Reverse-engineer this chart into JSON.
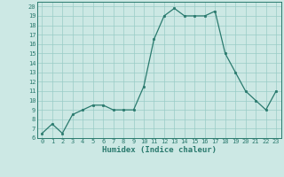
{
  "x": [
    0,
    1,
    2,
    3,
    4,
    5,
    6,
    7,
    8,
    9,
    10,
    11,
    12,
    13,
    14,
    15,
    16,
    17,
    18,
    19,
    20,
    21,
    22,
    23
  ],
  "y": [
    6.5,
    7.5,
    6.5,
    8.5,
    9.0,
    9.5,
    9.5,
    9.0,
    9.0,
    9.0,
    11.5,
    16.5,
    19.0,
    19.8,
    19.0,
    19.0,
    19.0,
    19.5,
    15.0,
    13.0,
    11.0,
    10.0,
    9.0,
    11.0
  ],
  "xlabel": "Humidex (Indice chaleur)",
  "ylim": [
    6,
    20.5
  ],
  "xlim": [
    -0.5,
    23.5
  ],
  "yticks": [
    6,
    7,
    8,
    9,
    10,
    11,
    12,
    13,
    14,
    15,
    16,
    17,
    18,
    19,
    20
  ],
  "xticks": [
    0,
    1,
    2,
    3,
    4,
    5,
    6,
    7,
    8,
    9,
    10,
    11,
    12,
    13,
    14,
    15,
    16,
    17,
    18,
    19,
    20,
    21,
    22,
    23
  ],
  "line_color": "#2a7a6e",
  "marker_color": "#2a7a6e",
  "bg_color": "#cce8e4",
  "grid_color": "#99ccc6",
  "xlabel_color": "#2a7a6e",
  "tick_color": "#2a7a6e",
  "spine_color": "#2a7a6e"
}
